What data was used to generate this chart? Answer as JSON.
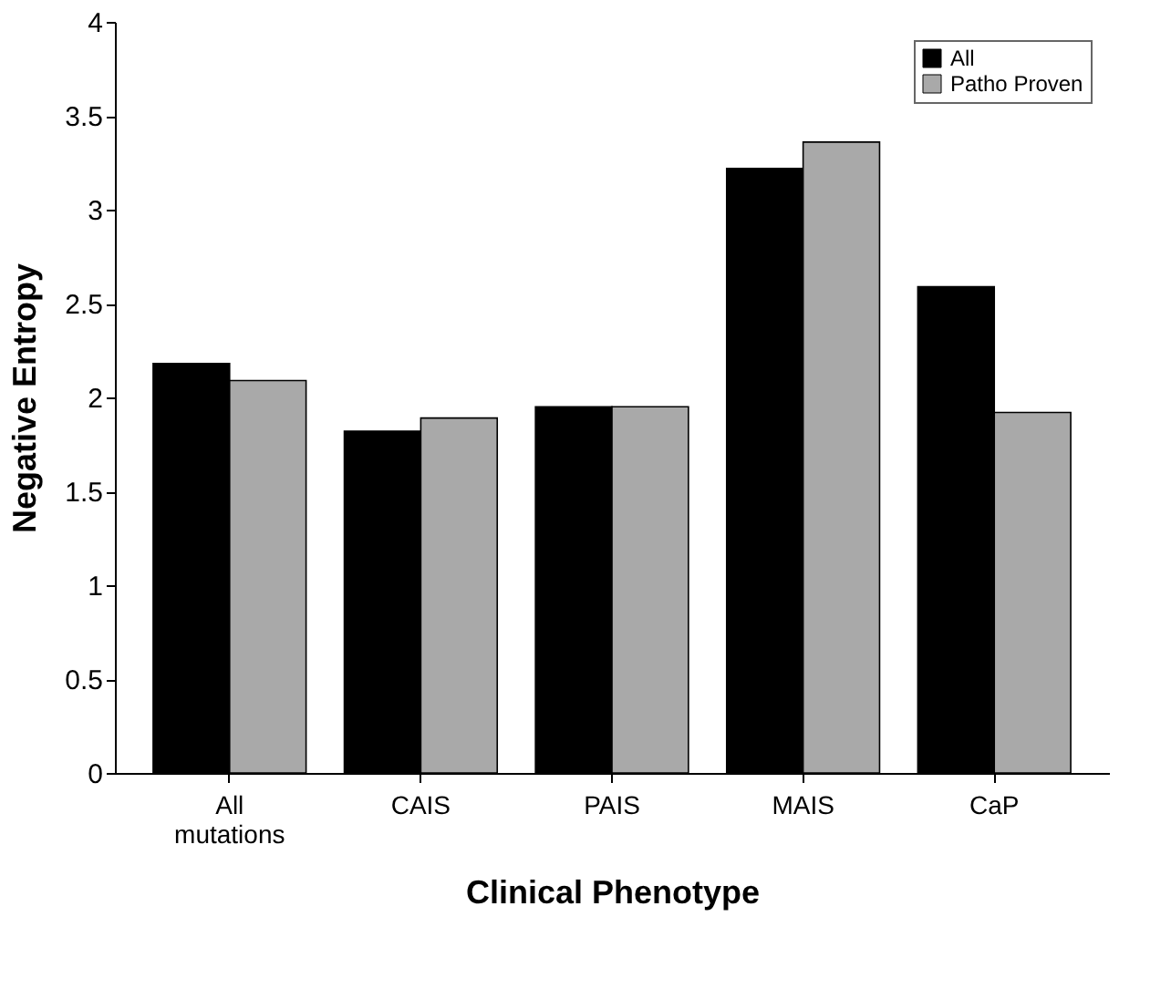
{
  "chart_data": {
    "type": "bar",
    "xlabel": "Clinical Phenotype",
    "ylabel": "Negative Entropy",
    "categories": [
      "All mutations",
      "CAIS",
      "PAIS",
      "MAIS",
      "CaP"
    ],
    "series": [
      {
        "name": "All",
        "color": "#000000",
        "values": [
          2.18,
          1.82,
          1.95,
          3.22,
          2.59
        ]
      },
      {
        "name": "Patho Proven",
        "color": "#a9a9a9",
        "values": [
          2.09,
          1.89,
          1.95,
          3.36,
          1.92
        ]
      }
    ],
    "ylim": [
      0,
      4
    ],
    "yticks": [
      0,
      0.5,
      1,
      1.5,
      2,
      2.5,
      3,
      3.5,
      4
    ],
    "grid": false,
    "legend": "top right"
  }
}
